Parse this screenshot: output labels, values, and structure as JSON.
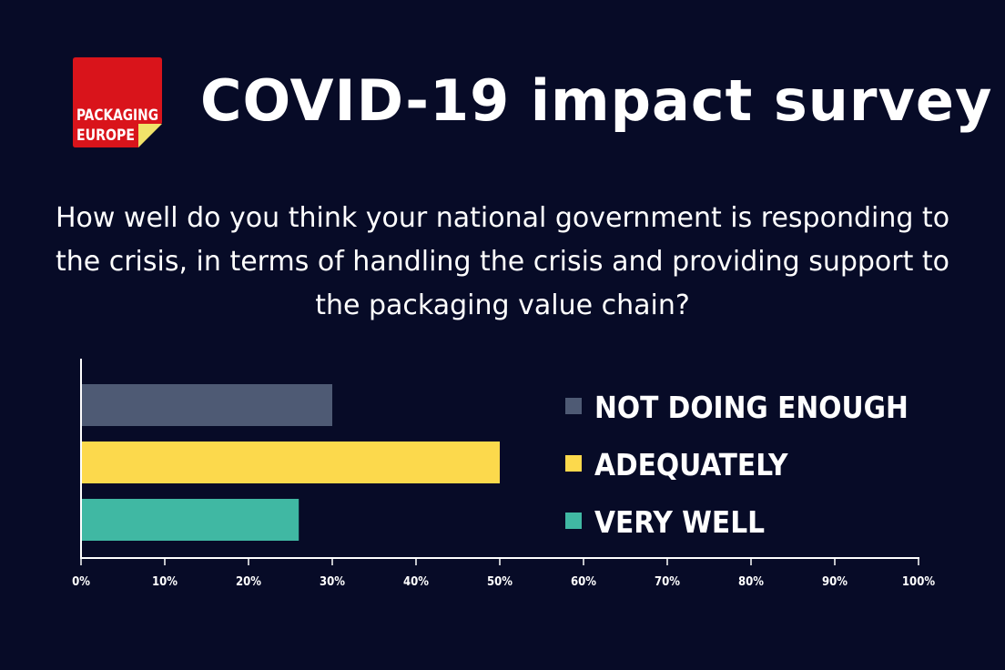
{
  "header": {
    "title": "COVID-19 impact survey",
    "logo": {
      "line1": "PACKAGING",
      "line2": "EUROPE",
      "red": "#d9141b",
      "yellow": "#f0e36a"
    }
  },
  "question": "How well do you think your national government is responding to the crisis, in terms of handling the crisis and providing support to the packaging value chain?",
  "chart_data": {
    "type": "bar",
    "orientation": "horizontal",
    "categories": [
      "NOT DOING ENOUGH",
      "ADEQUATELY",
      "VERY WELL"
    ],
    "values": [
      30,
      50,
      26
    ],
    "unit": "%",
    "colors": [
      "#4e5a74",
      "#fcd94c",
      "#40b8a3"
    ],
    "xlim": [
      0,
      100
    ],
    "xticks": [
      "0%",
      "10%",
      "20%",
      "30%",
      "40%",
      "50%",
      "60%",
      "70%",
      "80%",
      "90%",
      "100%"
    ],
    "legend": [
      {
        "label": "NOT DOING ENOUGH",
        "color": "#4e5a74"
      },
      {
        "label": "ADEQUATELY",
        "color": "#fcd94c"
      },
      {
        "label": "VERY WELL",
        "color": "#40b8a3"
      }
    ],
    "legend_position": "right",
    "grid": false
  }
}
